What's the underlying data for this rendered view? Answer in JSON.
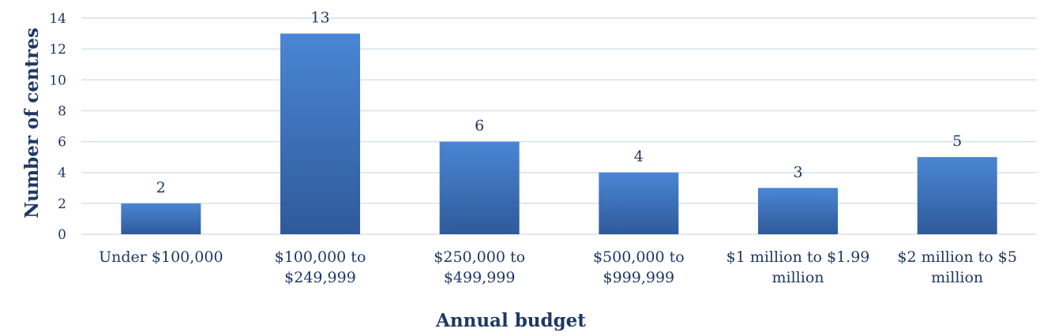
{
  "chart_data": {
    "type": "bar",
    "categories": [
      [
        "Under $100,000"
      ],
      [
        "$100,000 to",
        "$249,999"
      ],
      [
        "$250,000 to",
        "$499,999"
      ],
      [
        "$500,000 to",
        "$999,999"
      ],
      [
        "$1 million to $1.99",
        "million"
      ],
      [
        "$2 million to $5",
        "million"
      ]
    ],
    "values": [
      2,
      13,
      6,
      4,
      3,
      5
    ],
    "xlabel": "Annual budget",
    "ylabel": "Number of centres",
    "ylim": [
      0,
      14
    ],
    "yticks": [
      0,
      2,
      4,
      6,
      8,
      10,
      12,
      14
    ],
    "grid": true,
    "legend": "none",
    "colors": {
      "bar_top": "#4a86d4",
      "bar_bottom": "#2f5a9a",
      "text": "#1f3864",
      "grid": "#d6e2ee"
    }
  }
}
